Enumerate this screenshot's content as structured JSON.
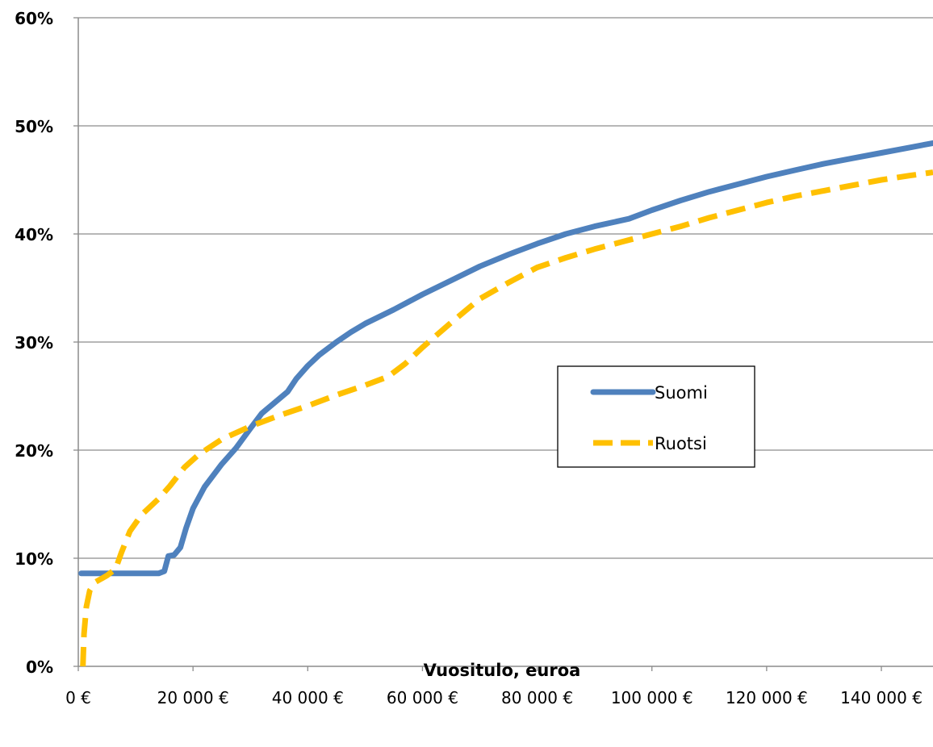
{
  "chart_data": {
    "type": "line",
    "title": "",
    "xlabel": "Vuositulo, euroa",
    "ylabel": "",
    "xlim": [
      0,
      149000
    ],
    "ylim": [
      0,
      60
    ],
    "grid": true,
    "legend_position": "center-right",
    "x_ticks": [
      {
        "value": 0,
        "label": "0 €"
      },
      {
        "value": 20000,
        "label": "20 000 €"
      },
      {
        "value": 40000,
        "label": "40 000 €"
      },
      {
        "value": 60000,
        "label": "60 000 €"
      },
      {
        "value": 80000,
        "label": "80 000 €"
      },
      {
        "value": 100000,
        "label": "100 000 €"
      },
      {
        "value": 120000,
        "label": "120 000 €"
      },
      {
        "value": 140000,
        "label": "140 000 €"
      }
    ],
    "y_ticks": [
      {
        "value": 0,
        "label": "0%"
      },
      {
        "value": 10,
        "label": "10%"
      },
      {
        "value": 20,
        "label": "20%"
      },
      {
        "value": 30,
        "label": "30%"
      },
      {
        "value": 40,
        "label": "40%"
      },
      {
        "value": 50,
        "label": "50%"
      },
      {
        "value": 60,
        "label": "60%"
      }
    ],
    "series": [
      {
        "name": "Suomi",
        "color": "#4f81bd",
        "style": "solid",
        "points": [
          [
            500,
            8.6
          ],
          [
            5000,
            8.6
          ],
          [
            10000,
            8.6
          ],
          [
            14000,
            8.6
          ],
          [
            15000,
            8.8
          ],
          [
            15700,
            10.2
          ],
          [
            16700,
            10.3
          ],
          [
            17800,
            11.0
          ],
          [
            18800,
            12.8
          ],
          [
            20000,
            14.6
          ],
          [
            22000,
            16.6
          ],
          [
            25000,
            18.7
          ],
          [
            27500,
            20.2
          ],
          [
            30000,
            22.0
          ],
          [
            32000,
            23.4
          ],
          [
            34000,
            24.3
          ],
          [
            36500,
            25.4
          ],
          [
            38000,
            26.6
          ],
          [
            40000,
            27.8
          ],
          [
            42000,
            28.8
          ],
          [
            45000,
            30.0
          ],
          [
            47500,
            30.9
          ],
          [
            50000,
            31.7
          ],
          [
            55000,
            33.0
          ],
          [
            60000,
            34.4
          ],
          [
            65000,
            35.7
          ],
          [
            70000,
            37.0
          ],
          [
            75000,
            38.1
          ],
          [
            80000,
            39.1
          ],
          [
            85000,
            40.0
          ],
          [
            90000,
            40.7
          ],
          [
            96000,
            41.4
          ],
          [
            100000,
            42.2
          ],
          [
            105000,
            43.1
          ],
          [
            110000,
            43.9
          ],
          [
            115000,
            44.6
          ],
          [
            120000,
            45.3
          ],
          [
            125000,
            45.9
          ],
          [
            130000,
            46.5
          ],
          [
            135000,
            47.0
          ],
          [
            140000,
            47.5
          ],
          [
            145000,
            48.0
          ],
          [
            149000,
            48.4
          ]
        ]
      },
      {
        "name": "Ruotsi",
        "color": "#ffc000",
        "style": "dashed",
        "points": [
          [
            800,
            0.0
          ],
          [
            1000,
            3.0
          ],
          [
            1400,
            5.5
          ],
          [
            2000,
            7.0
          ],
          [
            3000,
            7.8
          ],
          [
            5000,
            8.4
          ],
          [
            6500,
            9.0
          ],
          [
            7500,
            10.5
          ],
          [
            9000,
            12.5
          ],
          [
            11000,
            14.0
          ],
          [
            14000,
            15.5
          ],
          [
            16000,
            16.7
          ],
          [
            18500,
            18.4
          ],
          [
            21000,
            19.6
          ],
          [
            25000,
            21.0
          ],
          [
            30000,
            22.2
          ],
          [
            35000,
            23.2
          ],
          [
            40000,
            24.1
          ],
          [
            45000,
            25.1
          ],
          [
            50000,
            26.0
          ],
          [
            54000,
            26.8
          ],
          [
            57000,
            28.0
          ],
          [
            60000,
            29.5
          ],
          [
            65000,
            31.8
          ],
          [
            70000,
            34.0
          ],
          [
            75000,
            35.5
          ],
          [
            80000,
            36.9
          ],
          [
            85000,
            37.8
          ],
          [
            90000,
            38.6
          ],
          [
            95000,
            39.3
          ],
          [
            100000,
            40.0
          ],
          [
            105000,
            40.7
          ],
          [
            110000,
            41.5
          ],
          [
            115000,
            42.2
          ],
          [
            120000,
            42.9
          ],
          [
            125000,
            43.5
          ],
          [
            130000,
            44.0
          ],
          [
            135000,
            44.5
          ],
          [
            140000,
            45.0
          ],
          [
            145000,
            45.4
          ],
          [
            149000,
            45.7
          ]
        ]
      }
    ]
  }
}
